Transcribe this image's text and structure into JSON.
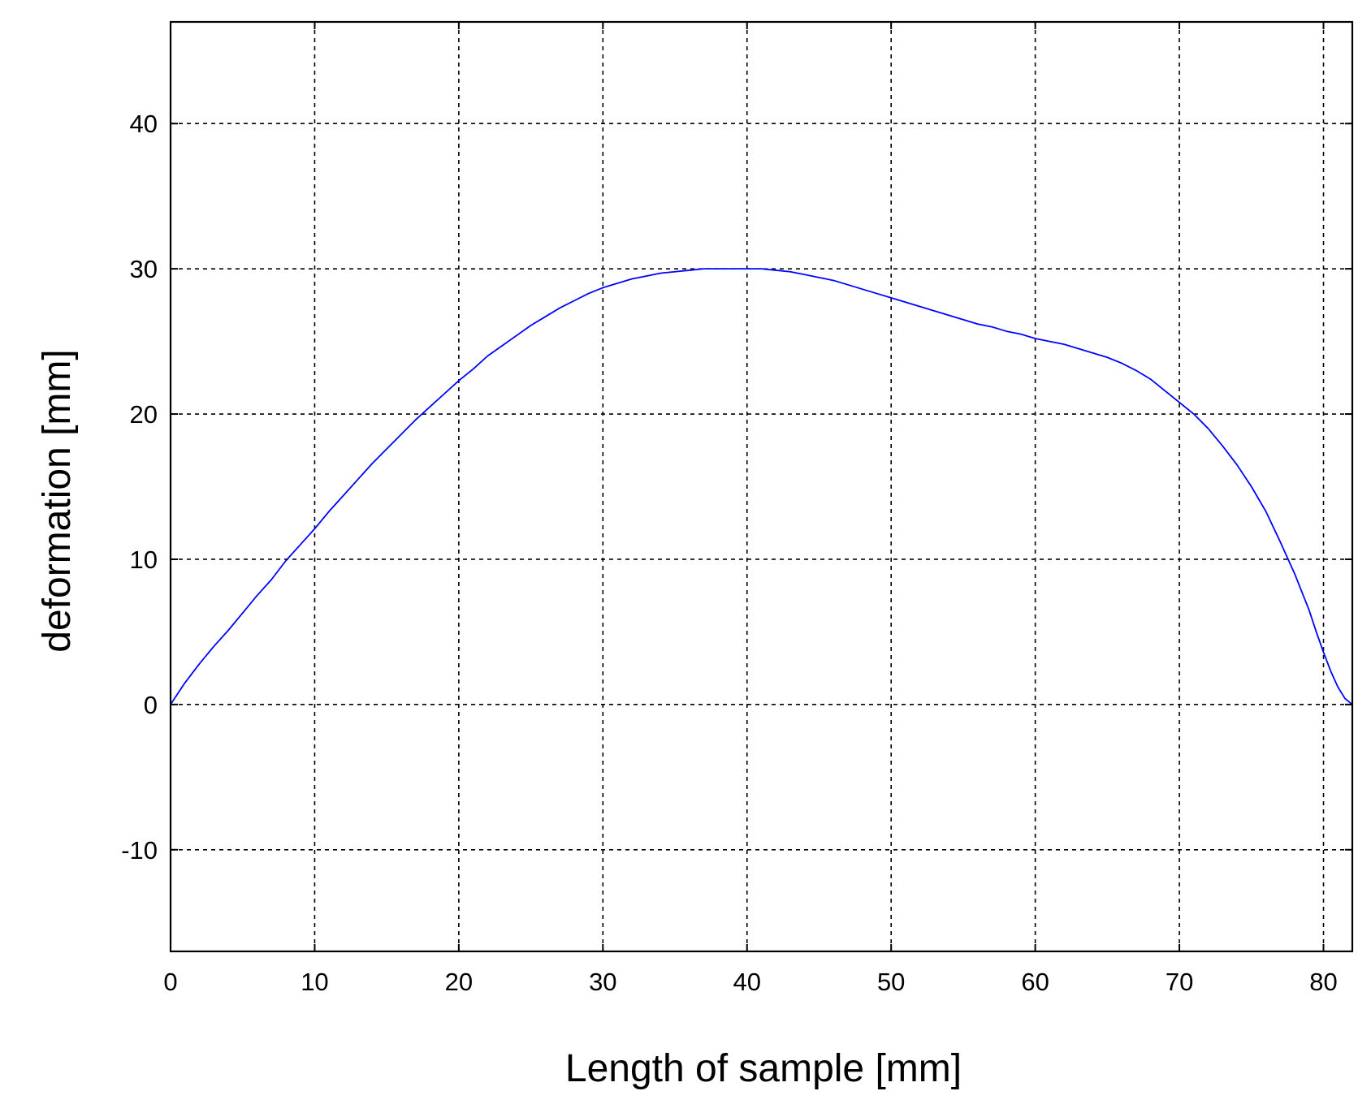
{
  "chart_data": {
    "type": "line",
    "title": "",
    "xlabel": "Length of sample [mm]",
    "ylabel": "deformation [mm]",
    "xlim": [
      0,
      82
    ],
    "ylim": [
      -17,
      47
    ],
    "xticks": [
      0,
      10,
      20,
      30,
      40,
      50,
      60,
      70,
      80
    ],
    "yticks": [
      -10,
      0,
      10,
      20,
      30,
      40
    ],
    "xtick_labels": [
      "0",
      "10",
      "20",
      "30",
      "40",
      "50",
      "60",
      "70",
      "80"
    ],
    "ytick_labels": [
      "-10",
      "0",
      "10",
      "20",
      "30",
      "40"
    ],
    "grid": true,
    "series_color": "#0000ff",
    "series": [
      {
        "x": [
          0,
          1,
          2,
          3,
          4,
          5,
          6,
          7,
          8,
          9,
          10,
          11,
          12,
          13,
          14,
          15,
          16,
          17,
          18,
          19,
          20,
          21,
          22,
          23,
          24,
          25,
          26,
          27,
          28,
          29,
          30,
          31,
          32,
          33,
          34,
          35,
          36,
          37,
          38,
          39,
          40,
          41,
          42,
          43,
          44,
          45,
          46,
          47,
          48,
          49,
          50,
          51,
          52,
          53,
          54,
          55,
          56,
          57,
          58,
          59,
          60,
          61,
          62,
          63,
          64,
          65,
          66,
          67,
          68,
          69,
          70,
          71,
          72,
          73,
          74,
          75,
          76,
          77,
          78,
          79,
          79.5,
          80,
          80.5,
          81,
          81.5,
          82
        ],
        "y": [
          0,
          1.5,
          2.8,
          4.0,
          5.1,
          6.3,
          7.5,
          8.6,
          9.9,
          11.0,
          12.1,
          13.3,
          14.4,
          15.5,
          16.6,
          17.6,
          18.6,
          19.6,
          20.5,
          21.4,
          22.3,
          23.1,
          24.0,
          24.7,
          25.4,
          26.1,
          26.7,
          27.3,
          27.8,
          28.3,
          28.7,
          29.0,
          29.3,
          29.5,
          29.7,
          29.8,
          29.9,
          30.0,
          30.0,
          30.0,
          30.0,
          30.0,
          29.9,
          29.8,
          29.6,
          29.4,
          29.2,
          28.9,
          28.6,
          28.3,
          28.0,
          27.7,
          27.4,
          27.1,
          26.8,
          26.5,
          26.2,
          26.0,
          25.7,
          25.5,
          25.2,
          25.0,
          24.8,
          24.5,
          24.2,
          23.9,
          23.5,
          23.0,
          22.4,
          21.6,
          20.8,
          20.0,
          19.0,
          17.8,
          16.5,
          15.0,
          13.3,
          11.2,
          9.0,
          6.5,
          5.0,
          3.6,
          2.3,
          1.2,
          0.4,
          0
        ]
      }
    ]
  }
}
